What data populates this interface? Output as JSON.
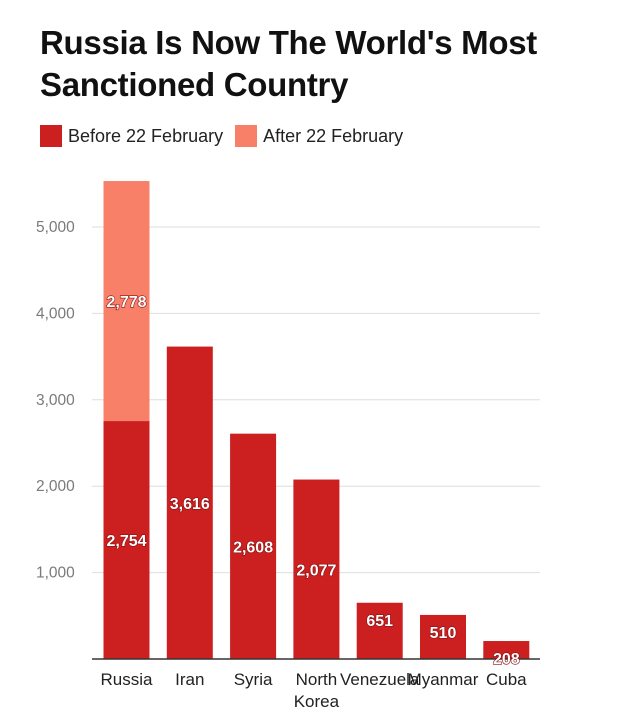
{
  "chart_data": {
    "type": "bar",
    "stacked": true,
    "title": "Russia Is Now The World's Most Sanctioned Country",
    "categories": [
      "Russia",
      "Iran",
      "Syria",
      "North Korea",
      "Venezuela",
      "Myanmar",
      "Cuba"
    ],
    "series": [
      {
        "name": "Before 22 February",
        "color": "#cc1f1f",
        "values": [
          2754,
          3616,
          2608,
          2077,
          651,
          510,
          208
        ]
      },
      {
        "name": "After 22 February",
        "color": "#f98068",
        "values": [
          2778,
          0,
          0,
          0,
          0,
          0,
          0
        ]
      }
    ],
    "yticks": [
      "1,000",
      "2,000",
      "3,000",
      "4,000",
      "5,000"
    ],
    "ytick_values": [
      1000,
      2000,
      3000,
      4000,
      5000
    ],
    "ylim": [
      0,
      5600
    ],
    "grid": true,
    "legend_position": "top-left"
  }
}
